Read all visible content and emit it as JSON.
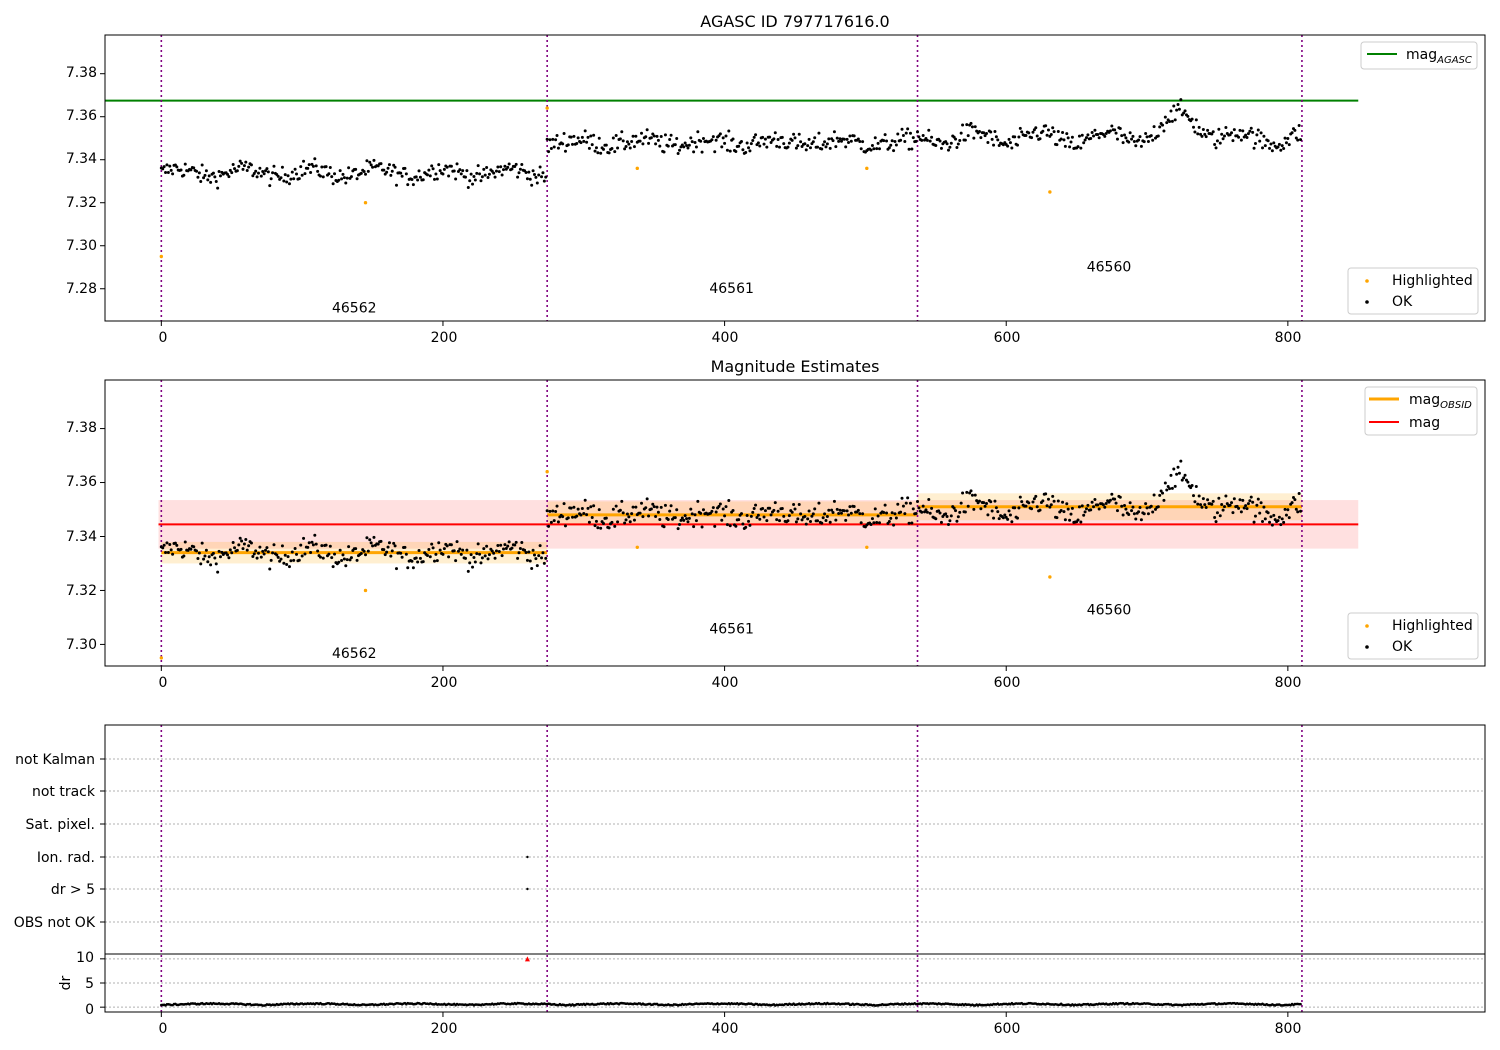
{
  "colors": {
    "ok": "#000000",
    "highlighted": "#ffa500",
    "mag_agasc": "#008000",
    "mag": "#ff0000",
    "mag_obsid": "#ffa500",
    "obs_boundary": "#800080",
    "flag_marker": "#ff0000"
  },
  "obsids": [
    "46562",
    "46561",
    "46560"
  ],
  "chart_data": [
    {
      "type": "scatter",
      "title": "AGASC ID 797717616.0",
      "xlim": [
        -40,
        940
      ],
      "ylim": [
        7.265,
        7.398
      ],
      "xticks": [
        "0",
        "200",
        "400",
        "600",
        "800"
      ],
      "yticks": [
        "7.28",
        "7.30",
        "7.32",
        "7.34",
        "7.36",
        "7.38"
      ],
      "legend_upper": {
        "location": "top-right",
        "entries": [
          {
            "label": "mag",
            "sub": "AGASC"
          }
        ]
      },
      "legend_lower": {
        "location": "bottom-right",
        "entries": [
          "Highlighted",
          "OK"
        ]
      },
      "mag_agasc": {
        "value": 7.3675,
        "x_range": [
          -40,
          850
        ]
      },
      "boundaries": [
        0,
        274,
        537,
        810
      ],
      "obsid_labels": [
        {
          "text": "46562",
          "x": 137,
          "y": 7.269
        },
        {
          "text": "46561",
          "x": 405,
          "y": 7.278
        },
        {
          "text": "46560",
          "x": 673,
          "y": 7.288
        }
      ],
      "ok_segments": [
        {
          "x": [
            0,
            274
          ],
          "mean": 7.334,
          "noise": 0.0042,
          "wave": 0.002
        },
        {
          "x": [
            274,
            537
          ],
          "mean": 7.348,
          "noise": 0.0045,
          "wave": 0.0015
        },
        {
          "x": [
            537,
            810
          ],
          "mean": 7.35,
          "noise": 0.0045,
          "wave": 0.003,
          "bump": {
            "x": 725,
            "height": 0.01,
            "width": 18
          }
        }
      ],
      "highlighted_points": [
        [
          0,
          7.295
        ],
        [
          145,
          7.32
        ],
        [
          274,
          7.364
        ],
        [
          338,
          7.336
        ],
        [
          501,
          7.336
        ],
        [
          631,
          7.325
        ]
      ]
    },
    {
      "type": "scatter",
      "title": "Magnitude Estimates",
      "xlim": [
        -40,
        940
      ],
      "ylim": [
        7.292,
        7.398
      ],
      "xticks": [
        "0",
        "200",
        "400",
        "600",
        "800"
      ],
      "yticks": [
        "7.30",
        "7.32",
        "7.34",
        "7.36",
        "7.38"
      ],
      "legend_upper": {
        "location": "top-right",
        "entries": [
          {
            "label": "mag",
            "sub": "OBSID"
          },
          {
            "label": "mag",
            "sub": ""
          }
        ]
      },
      "legend_lower": {
        "location": "bottom-right",
        "entries": [
          "Highlighted",
          "OK"
        ]
      },
      "mag_line": {
        "value": 7.3445,
        "band": [
          7.3355,
          7.3535
        ],
        "x_range": [
          -2,
          850
        ]
      },
      "obsid_mags": [
        {
          "x": [
            0,
            274
          ],
          "value": 7.334,
          "band": [
            7.33,
            7.338
          ]
        },
        {
          "x": [
            274,
            537
          ],
          "value": 7.348,
          "band": [
            7.344,
            7.353
          ]
        },
        {
          "x": [
            537,
            810
          ],
          "value": 7.351,
          "band": [
            7.346,
            7.356
          ]
        }
      ],
      "boundaries": [
        0,
        274,
        537,
        810
      ],
      "obsid_labels": [
        {
          "text": "46562",
          "x": 137,
          "y": 7.295
        },
        {
          "text": "46561",
          "x": 405,
          "y": 7.304
        },
        {
          "text": "46560",
          "x": 673,
          "y": 7.311
        }
      ]
    },
    {
      "type": "scatter",
      "xlim": [
        -40,
        940
      ],
      "flag_categories": [
        "not Kalman",
        "not track",
        "Sat. pixel.",
        "Ion. rad.",
        "dr > 5",
        "OBS not OK"
      ],
      "flag_points": [
        {
          "category": "Ion. rad.",
          "x": 260
        },
        {
          "category": "dr > 5",
          "x": 260
        }
      ],
      "dr_panel": {
        "ylabel": "dr",
        "ylim": [
          -1,
          11
        ],
        "yticks": [
          "0",
          "5",
          "10"
        ],
        "clipped_marker": {
          "x": 260,
          "y": 10
        },
        "level": 0.6
      },
      "xticks": [
        "0",
        "200",
        "400",
        "600",
        "800"
      ],
      "boundaries": [
        0,
        274,
        537,
        810
      ]
    }
  ]
}
